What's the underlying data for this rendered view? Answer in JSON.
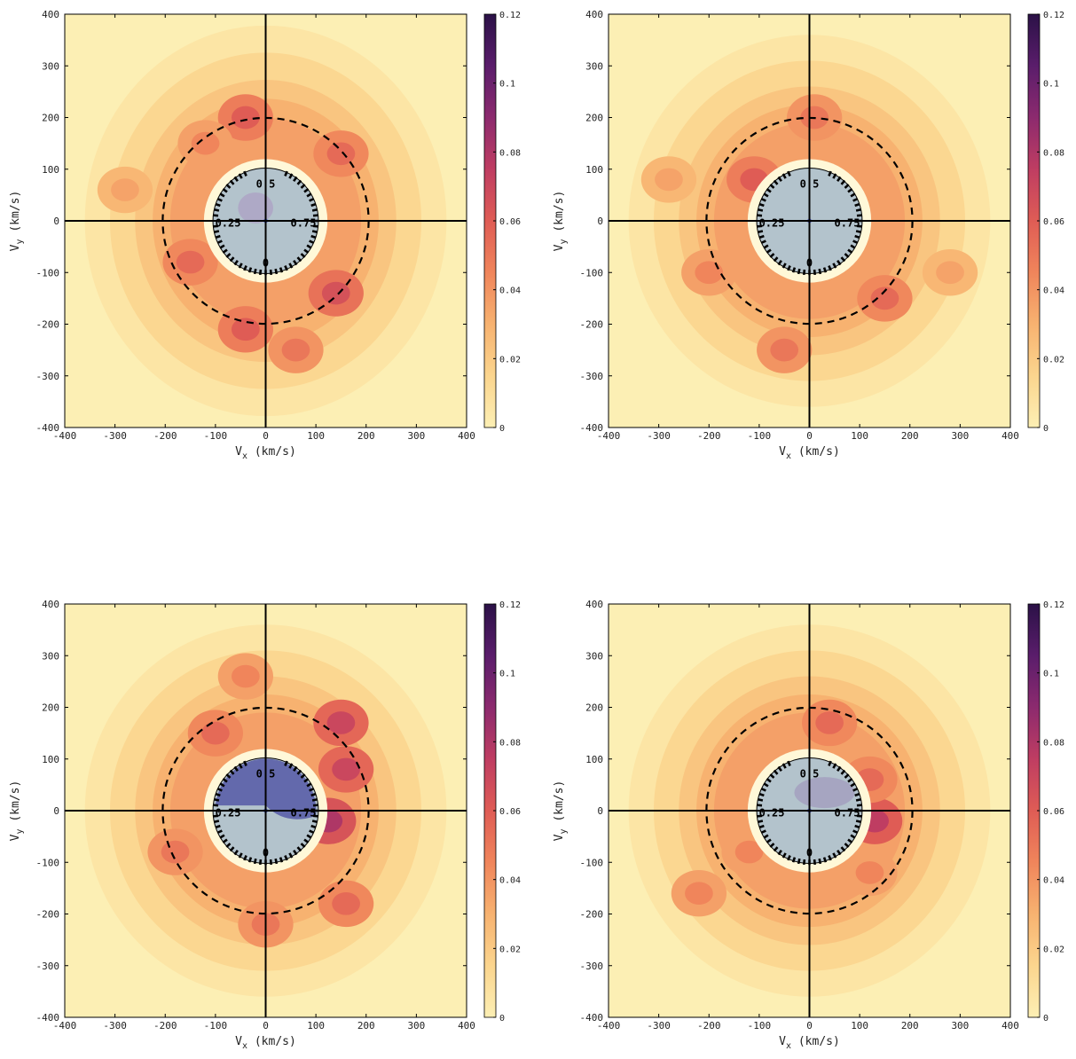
{
  "colors": {
    "cmap": [
      "#fcefb4",
      "#fbd58e",
      "#f7b270",
      "#f0855b",
      "#df5c55",
      "#bf3d62",
      "#8c2a6e",
      "#5a1d6b",
      "#2b1147"
    ],
    "inner_disc": "#b3c3cc",
    "inner_glow": "#fff8d8",
    "inner_blob": "#5a5fa8",
    "axis_line": "#000000"
  },
  "chart_data": [
    {
      "type": "heatmap",
      "panel": "top-left",
      "xlabel": "V_x (km/s)",
      "ylabel": "V_y (km/s)",
      "xlim": [
        -400,
        400
      ],
      "ylim": [
        -400,
        400
      ],
      "xticks": [
        "-400",
        "-300",
        "-200",
        "-100",
        "0",
        "100",
        "200",
        "300",
        "400"
      ],
      "yticks": [
        "-400",
        "-300",
        "-200",
        "-100",
        "0",
        "100",
        "200",
        "300",
        "400"
      ],
      "colorbar": {
        "min": 0,
        "max": 0.12,
        "ticks": [
          "0",
          "0.02",
          "0.04",
          "0.06",
          "0.08",
          "0.1",
          "0.12"
        ]
      },
      "dashed_circle_radius": 205,
      "inner_circle_radius": 105,
      "clock_labels": [
        "0.5",
        "0.25",
        "0.75",
        "0"
      ],
      "hotspots": [
        {
          "x": -40,
          "y": 200,
          "level": 0.06
        },
        {
          "x": 150,
          "y": 130,
          "level": 0.055
        },
        {
          "x": 140,
          "y": -140,
          "level": 0.065
        },
        {
          "x": -150,
          "y": -80,
          "level": 0.055
        },
        {
          "x": -40,
          "y": -210,
          "level": 0.06
        },
        {
          "x": 60,
          "y": -250,
          "level": 0.05
        },
        {
          "x": -120,
          "y": 150,
          "level": 0.045
        },
        {
          "x": -280,
          "y": 60,
          "level": 0.035
        }
      ]
    },
    {
      "type": "heatmap",
      "panel": "top-right",
      "xlabel": "V_x (km/s)",
      "ylabel": "V_y (km/s)",
      "xlim": [
        -400,
        400
      ],
      "ylim": [
        -400,
        400
      ],
      "xticks": [
        "-400",
        "-300",
        "-200",
        "-100",
        "0",
        "100",
        "200",
        "300",
        "400"
      ],
      "yticks": [
        "-400",
        "-300",
        "-200",
        "-100",
        "0",
        "100",
        "200",
        "300",
        "400"
      ],
      "colorbar": {
        "min": 0,
        "max": 0.12,
        "ticks": [
          "0",
          "0.02",
          "0.04",
          "0.06",
          "0.08",
          "0.1",
          "0.12"
        ]
      },
      "dashed_circle_radius": 205,
      "inner_circle_radius": 105,
      "clock_labels": [
        "0.5",
        "0.25",
        "0.75",
        "0"
      ],
      "hotspots": [
        {
          "x": -110,
          "y": 80,
          "level": 0.06
        },
        {
          "x": 10,
          "y": 200,
          "level": 0.05
        },
        {
          "x": 150,
          "y": -150,
          "level": 0.055
        },
        {
          "x": -50,
          "y": -250,
          "level": 0.05
        },
        {
          "x": -200,
          "y": -100,
          "level": 0.045
        },
        {
          "x": 280,
          "y": -100,
          "level": 0.035
        },
        {
          "x": -280,
          "y": 80,
          "level": 0.035
        }
      ]
    },
    {
      "type": "heatmap",
      "panel": "bottom-left",
      "xlabel": "V_x (km/s)",
      "ylabel": "V_y (km/s)",
      "xlim": [
        -400,
        400
      ],
      "ylim": [
        -400,
        400
      ],
      "xticks": [
        "-400",
        "-300",
        "-200",
        "-100",
        "0",
        "100",
        "200",
        "300",
        "400"
      ],
      "yticks": [
        "-400",
        "-300",
        "-200",
        "-100",
        "0",
        "100",
        "200",
        "300",
        "400"
      ],
      "colorbar": {
        "min": 0,
        "max": 0.12,
        "ticks": [
          "0",
          "0.02",
          "0.04",
          "0.06",
          "0.08",
          "0.1",
          "0.12"
        ]
      },
      "dashed_circle_radius": 205,
      "inner_circle_radius": 105,
      "clock_labels": [
        "0.5",
        "0.25",
        "0.75",
        "0"
      ],
      "hotspots": [
        {
          "x": 150,
          "y": 170,
          "level": 0.07
        },
        {
          "x": 160,
          "y": 80,
          "level": 0.07
        },
        {
          "x": 125,
          "y": -20,
          "level": 0.08
        },
        {
          "x": -100,
          "y": 150,
          "level": 0.055
        },
        {
          "x": -180,
          "y": -80,
          "level": 0.05
        },
        {
          "x": 160,
          "y": -180,
          "level": 0.055
        },
        {
          "x": 0,
          "y": -220,
          "level": 0.05
        },
        {
          "x": -40,
          "y": 260,
          "level": 0.045
        }
      ]
    },
    {
      "type": "heatmap",
      "panel": "bottom-right",
      "xlabel": "V_x (km/s)",
      "ylabel": "V_y (km/s)",
      "xlim": [
        -400,
        400
      ],
      "ylim": [
        -400,
        400
      ],
      "xticks": [
        "-400",
        "-300",
        "-200",
        "-100",
        "0",
        "100",
        "200",
        "300",
        "400"
      ],
      "yticks": [
        "-400",
        "-300",
        "-200",
        "-100",
        "0",
        "100",
        "200",
        "300",
        "400"
      ],
      "colorbar": {
        "min": 0,
        "max": 0.12,
        "ticks": [
          "0",
          "0.02",
          "0.04",
          "0.06",
          "0.08",
          "0.1",
          "0.12"
        ]
      },
      "dashed_circle_radius": 205,
      "inner_circle_radius": 105,
      "clock_labels": [
        "0.5",
        "0.25",
        "0.75",
        "0"
      ],
      "hotspots": [
        {
          "x": 130,
          "y": -20,
          "level": 0.075
        },
        {
          "x": 120,
          "y": 60,
          "level": 0.055
        },
        {
          "x": 40,
          "y": 170,
          "level": 0.055
        },
        {
          "x": -220,
          "y": -160,
          "level": 0.045
        },
        {
          "x": -120,
          "y": -80,
          "level": 0.045
        },
        {
          "x": 120,
          "y": -120,
          "level": 0.045
        }
      ]
    }
  ]
}
